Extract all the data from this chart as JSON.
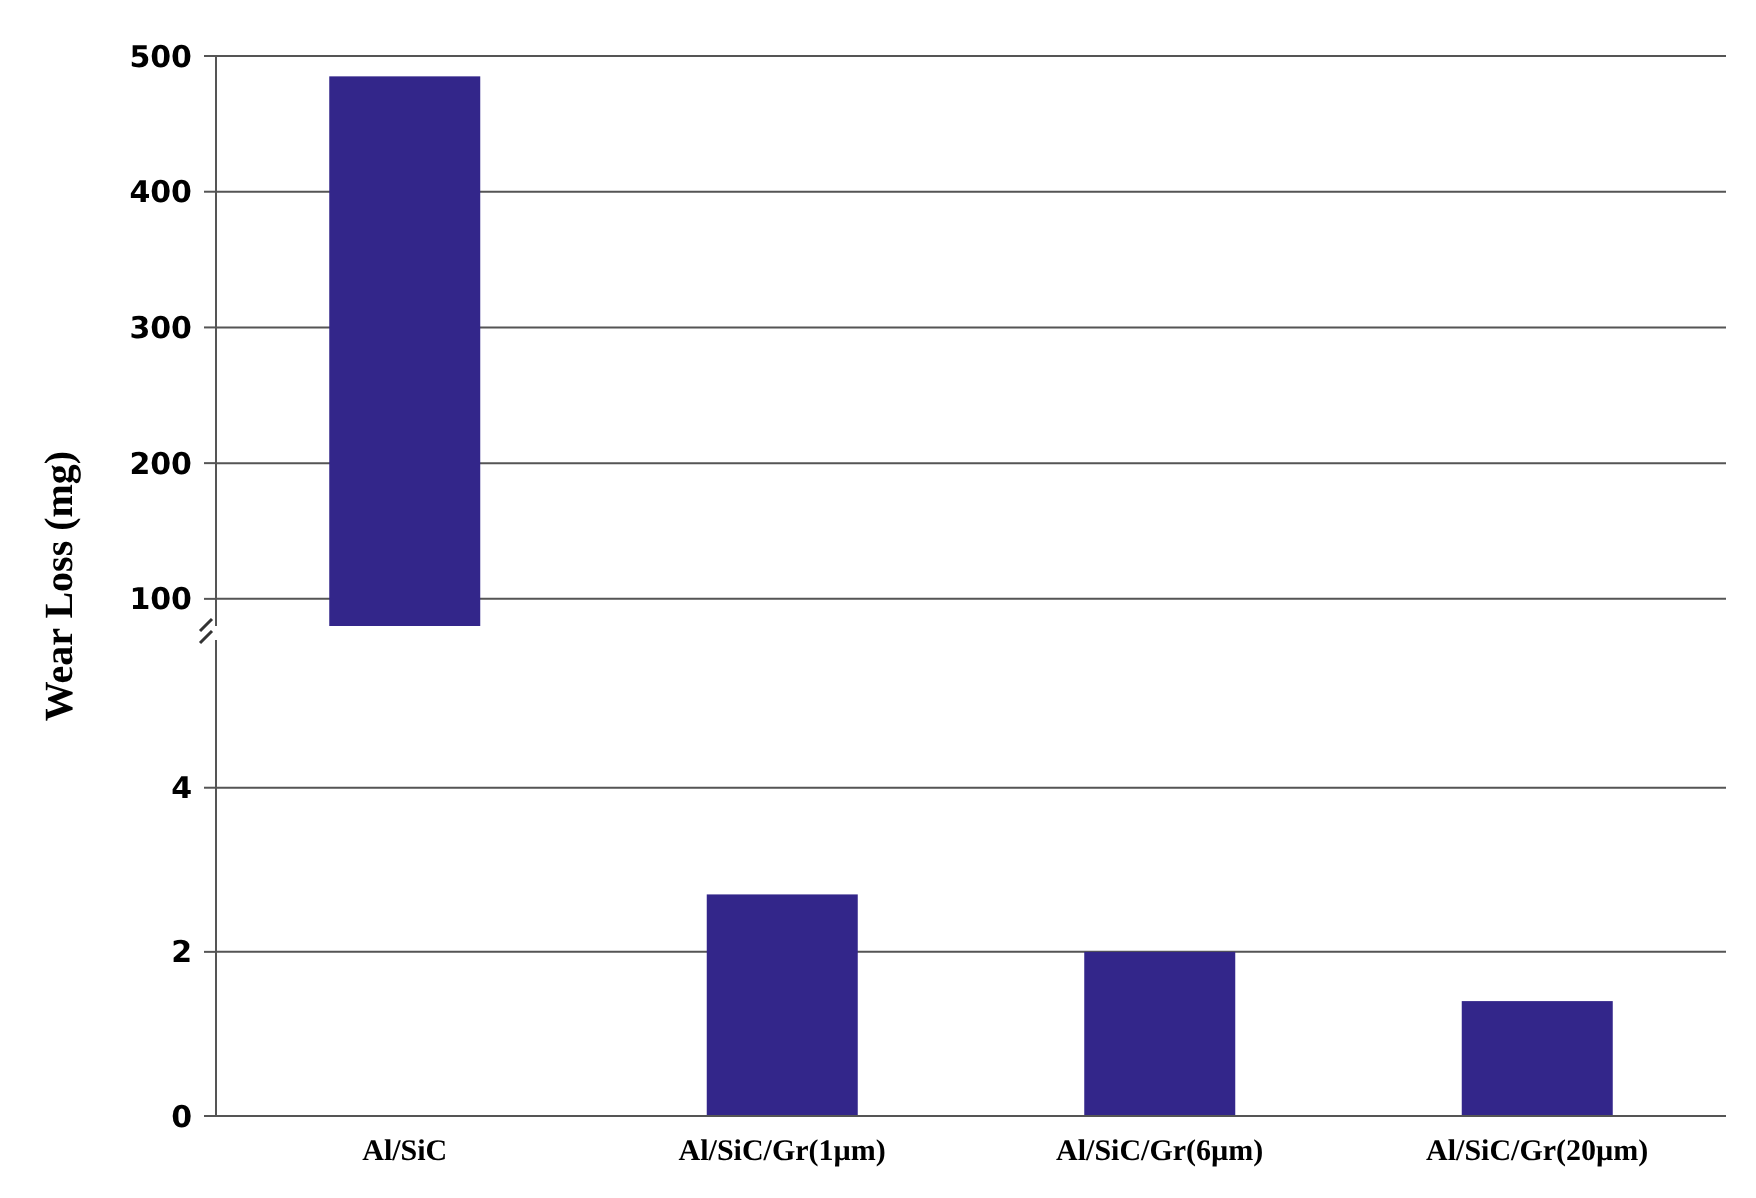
{
  "chart_data": [
    {
      "type": "bar",
      "ylabel": "Wear Loss (mg)",
      "categories": [
        null,
        null,
        null,
        null
      ],
      "values": [
        485,
        null,
        null,
        null
      ],
      "color": "#33268a",
      "ylim": [
        80,
        500
      ],
      "yticks": [
        100,
        200,
        300,
        400,
        500
      ],
      "grid": "y"
    },
    {
      "type": "bar",
      "categories": [
        "Al/SiC",
        "Al/SiC/Gr(1µm)",
        "Al/SiC/Gr(6µm)",
        "Al/SiC/Gr(20µm)"
      ],
      "values": [
        null,
        2.7,
        2.0,
        1.4
      ],
      "color": "#33268a",
      "ylim": [
        0,
        5.8
      ],
      "yticks": [
        0,
        2,
        4
      ],
      "grid": "y"
    }
  ]
}
